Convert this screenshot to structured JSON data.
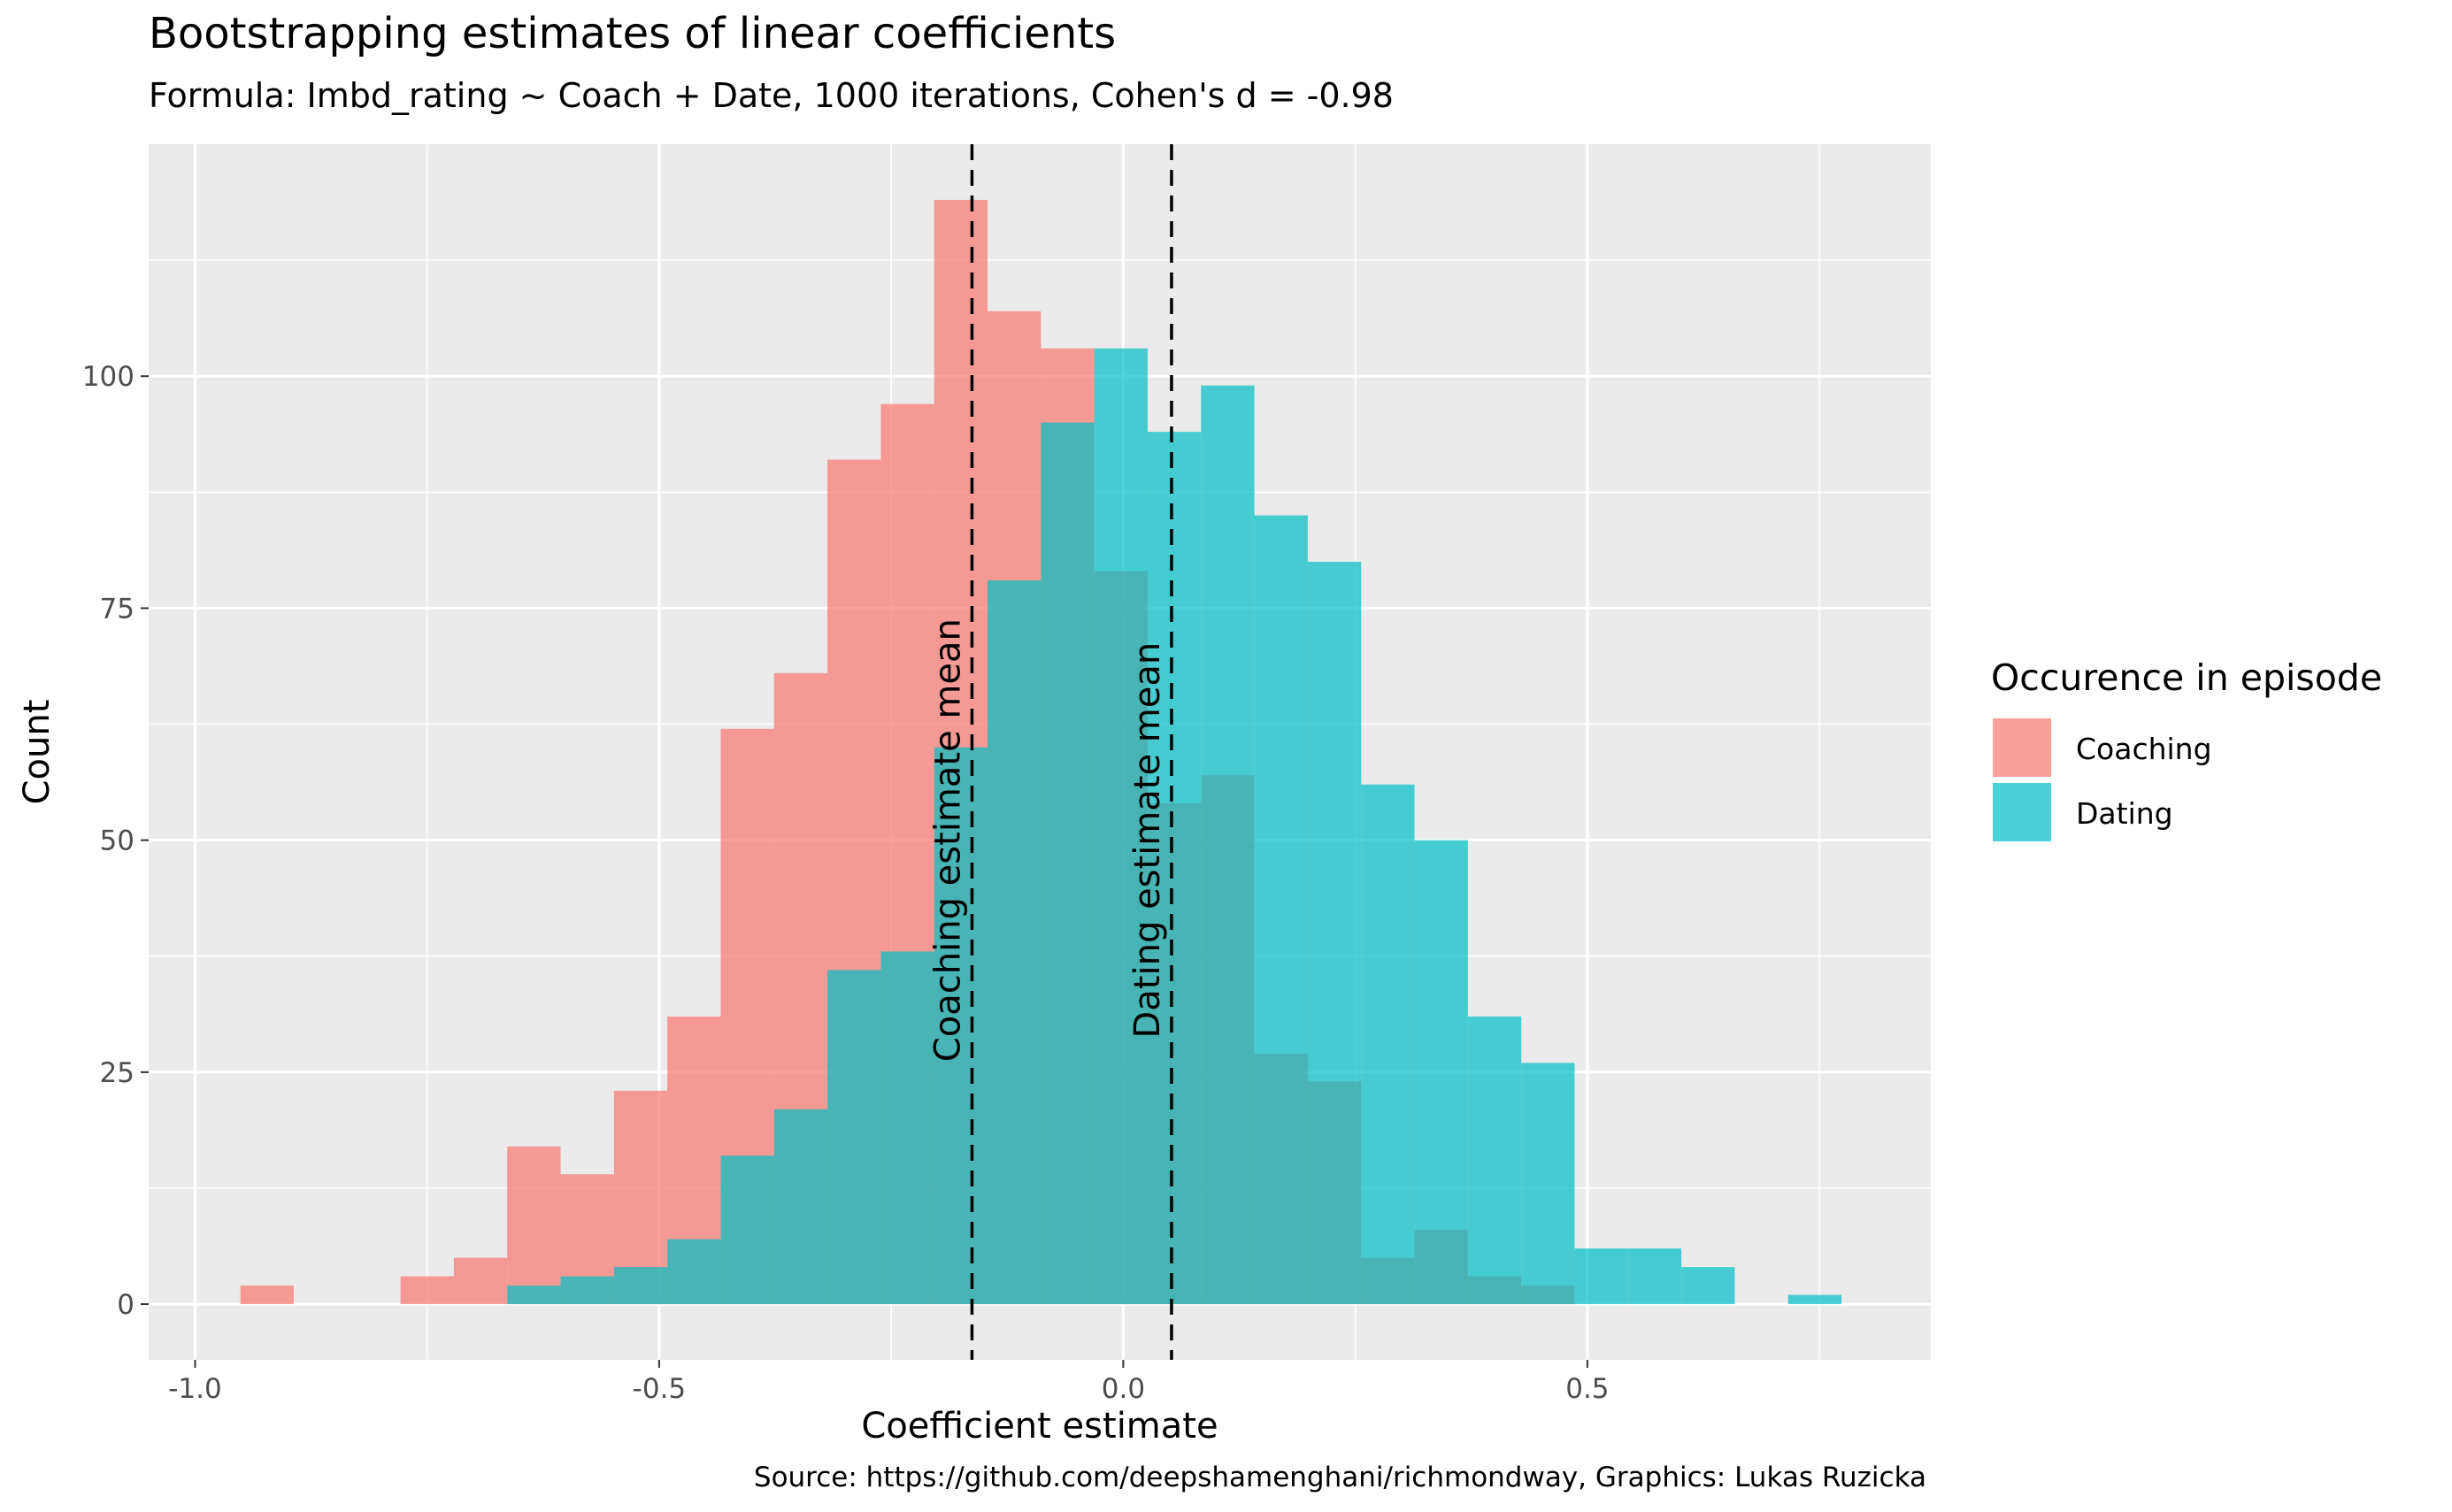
{
  "chart_data": {
    "type": "histogram",
    "title": "Bootstrapping estimates of linear coefficients",
    "subtitle": "Formula: Imbd_rating ~ Coach + Date, 1000 iterations, Cohen's d = -0.98",
    "caption": "Source: https://github.com/deepshamenghani/richmondway, Graphics: Lukas Ruzicka",
    "xlabel": "Coefficient estimate",
    "ylabel": "Count",
    "xlim": [
      -1.05,
      0.87
    ],
    "ylim": [
      -6,
      125
    ],
    "x_ticks": [
      -1.0,
      -0.5,
      0.0,
      0.5
    ],
    "x_tick_labels": [
      "-1.0",
      "-0.5",
      "0.0",
      "0.5"
    ],
    "y_ticks": [
      0,
      25,
      50,
      75,
      100
    ],
    "y_tick_labels": [
      "0",
      "25",
      "50",
      "75",
      "100"
    ],
    "grid": true,
    "legend": {
      "title": "Occurence in episode",
      "placement": "right"
    },
    "bin_width": 0.0575,
    "series": [
      {
        "name": "Coaching",
        "color": "#F8766D",
        "bins": [
          {
            "x0": -0.9512,
            "x1": -0.8937,
            "count": 2
          },
          {
            "x0": -0.7787,
            "x1": -0.7212,
            "count": 3
          },
          {
            "x0": -0.7212,
            "x1": -0.6637,
            "count": 5
          },
          {
            "x0": -0.6637,
            "x1": -0.6062,
            "count": 17
          },
          {
            "x0": -0.6062,
            "x1": -0.5487,
            "count": 14
          },
          {
            "x0": -0.5487,
            "x1": -0.4912,
            "count": 23
          },
          {
            "x0": -0.4912,
            "x1": -0.4337,
            "count": 31
          },
          {
            "x0": -0.4337,
            "x1": -0.3762,
            "count": 62
          },
          {
            "x0": -0.3762,
            "x1": -0.3187,
            "count": 68
          },
          {
            "x0": -0.3187,
            "x1": -0.2612,
            "count": 91
          },
          {
            "x0": -0.2612,
            "x1": -0.2037,
            "count": 97
          },
          {
            "x0": -0.2037,
            "x1": -0.1462,
            "count": 119
          },
          {
            "x0": -0.1462,
            "x1": -0.0887,
            "count": 107
          },
          {
            "x0": -0.0887,
            "x1": -0.0312,
            "count": 103
          },
          {
            "x0": -0.0312,
            "x1": 0.0263,
            "count": 79
          },
          {
            "x0": 0.0263,
            "x1": 0.0838,
            "count": 54
          },
          {
            "x0": 0.0838,
            "x1": 0.1413,
            "count": 57
          },
          {
            "x0": 0.1413,
            "x1": 0.1988,
            "count": 27
          },
          {
            "x0": 0.1988,
            "x1": 0.2563,
            "count": 24
          },
          {
            "x0": 0.2563,
            "x1": 0.3138,
            "count": 5
          },
          {
            "x0": 0.3138,
            "x1": 0.3713,
            "count": 8
          },
          {
            "x0": 0.3713,
            "x1": 0.4288,
            "count": 3
          },
          {
            "x0": 0.4288,
            "x1": 0.4863,
            "count": 2
          }
        ]
      },
      {
        "name": "Dating",
        "color": "#00BFC4",
        "bins": [
          {
            "x0": -0.6637,
            "x1": -0.6062,
            "count": 2
          },
          {
            "x0": -0.6062,
            "x1": -0.5487,
            "count": 3
          },
          {
            "x0": -0.5487,
            "x1": -0.4912,
            "count": 4
          },
          {
            "x0": -0.4912,
            "x1": -0.4337,
            "count": 7
          },
          {
            "x0": -0.4337,
            "x1": -0.3762,
            "count": 16
          },
          {
            "x0": -0.3762,
            "x1": -0.3187,
            "count": 21
          },
          {
            "x0": -0.3187,
            "x1": -0.2612,
            "count": 36
          },
          {
            "x0": -0.2612,
            "x1": -0.2037,
            "count": 38
          },
          {
            "x0": -0.2037,
            "x1": -0.1462,
            "count": 60
          },
          {
            "x0": -0.1462,
            "x1": -0.0887,
            "count": 78
          },
          {
            "x0": -0.0887,
            "x1": -0.0312,
            "count": 95
          },
          {
            "x0": -0.0312,
            "x1": 0.0263,
            "count": 103
          },
          {
            "x0": 0.0263,
            "x1": 0.0838,
            "count": 94
          },
          {
            "x0": 0.0838,
            "x1": 0.1413,
            "count": 99
          },
          {
            "x0": 0.1413,
            "x1": 0.1988,
            "count": 85
          },
          {
            "x0": 0.1988,
            "x1": 0.2563,
            "count": 80
          },
          {
            "x0": 0.2563,
            "x1": 0.3138,
            "count": 56
          },
          {
            "x0": 0.3138,
            "x1": 0.3713,
            "count": 50
          },
          {
            "x0": 0.3713,
            "x1": 0.4288,
            "count": 31
          },
          {
            "x0": 0.4288,
            "x1": 0.4863,
            "count": 26
          },
          {
            "x0": 0.4863,
            "x1": 0.5438,
            "count": 6
          },
          {
            "x0": 0.5438,
            "x1": 0.6013,
            "count": 6
          },
          {
            "x0": 0.6013,
            "x1": 0.6588,
            "count": 4
          },
          {
            "x0": 0.7163,
            "x1": 0.7738,
            "count": 1
          }
        ]
      }
    ],
    "reference_lines": [
      {
        "x": -0.163,
        "label": "Coaching estimate mean"
      },
      {
        "x": 0.052,
        "label": "Dating estimate mean"
      }
    ]
  }
}
